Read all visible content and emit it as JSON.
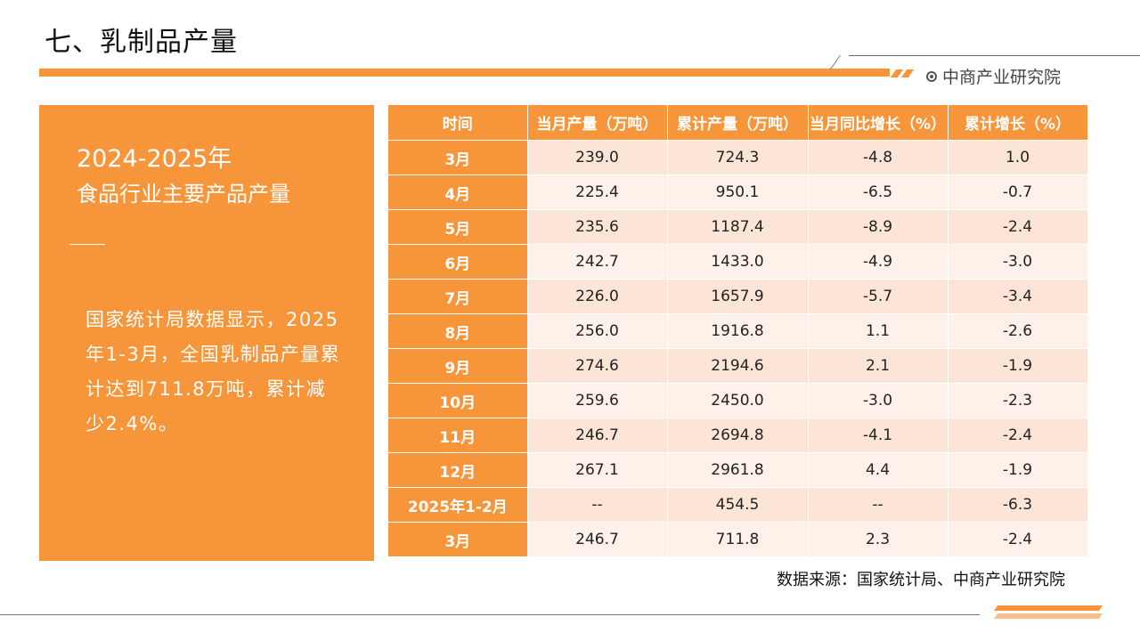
{
  "header": {
    "title": "七、乳制品产量",
    "brand": "中商产业研究院"
  },
  "panel": {
    "years": "2024-2025年",
    "subtitle": "食品行业主要产品产量",
    "body": "国家统计局数据显示，2025年1-3月，全国乳制品产量累计达到711.8万吨，累计减少2.4%。"
  },
  "table": {
    "headers": [
      "时间",
      "当月产量（万吨）",
      "累计产量（万吨）",
      "当月同比增长（%）",
      "累计增长（%）"
    ],
    "rows": [
      [
        "3月",
        "239.0",
        "724.3",
        "-4.8",
        "1.0"
      ],
      [
        "4月",
        "225.4",
        "950.1",
        "-6.5",
        "-0.7"
      ],
      [
        "5月",
        "235.6",
        "1187.4",
        "-8.9",
        "-2.4"
      ],
      [
        "6月",
        "242.7",
        "1433.0",
        "-4.9",
        "-3.0"
      ],
      [
        "7月",
        "226.0",
        "1657.9",
        "-5.7",
        "-3.4"
      ],
      [
        "8月",
        "256.0",
        "1916.8",
        "1.1",
        "-2.6"
      ],
      [
        "9月",
        "274.6",
        "2194.6",
        "2.1",
        "-1.9"
      ],
      [
        "10月",
        "259.6",
        "2450.0",
        "-3.0",
        "-2.3"
      ],
      [
        "11月",
        "246.7",
        "2694.8",
        "-4.1",
        "-2.4"
      ],
      [
        "12月",
        "267.1",
        "2961.8",
        "4.4",
        "-1.9"
      ],
      [
        "2025年1-2月",
        "--",
        "454.5",
        "--",
        "-6.3"
      ],
      [
        "3月",
        "246.7",
        "711.8",
        "2.3",
        "-2.4"
      ]
    ]
  },
  "footer": {
    "source": "数据来源：国家统计局、中商产业研究院"
  },
  "colors": {
    "accent": "#f7953a",
    "row_light": "#fce5d6",
    "row_lighter": "#fdf1e9"
  }
}
